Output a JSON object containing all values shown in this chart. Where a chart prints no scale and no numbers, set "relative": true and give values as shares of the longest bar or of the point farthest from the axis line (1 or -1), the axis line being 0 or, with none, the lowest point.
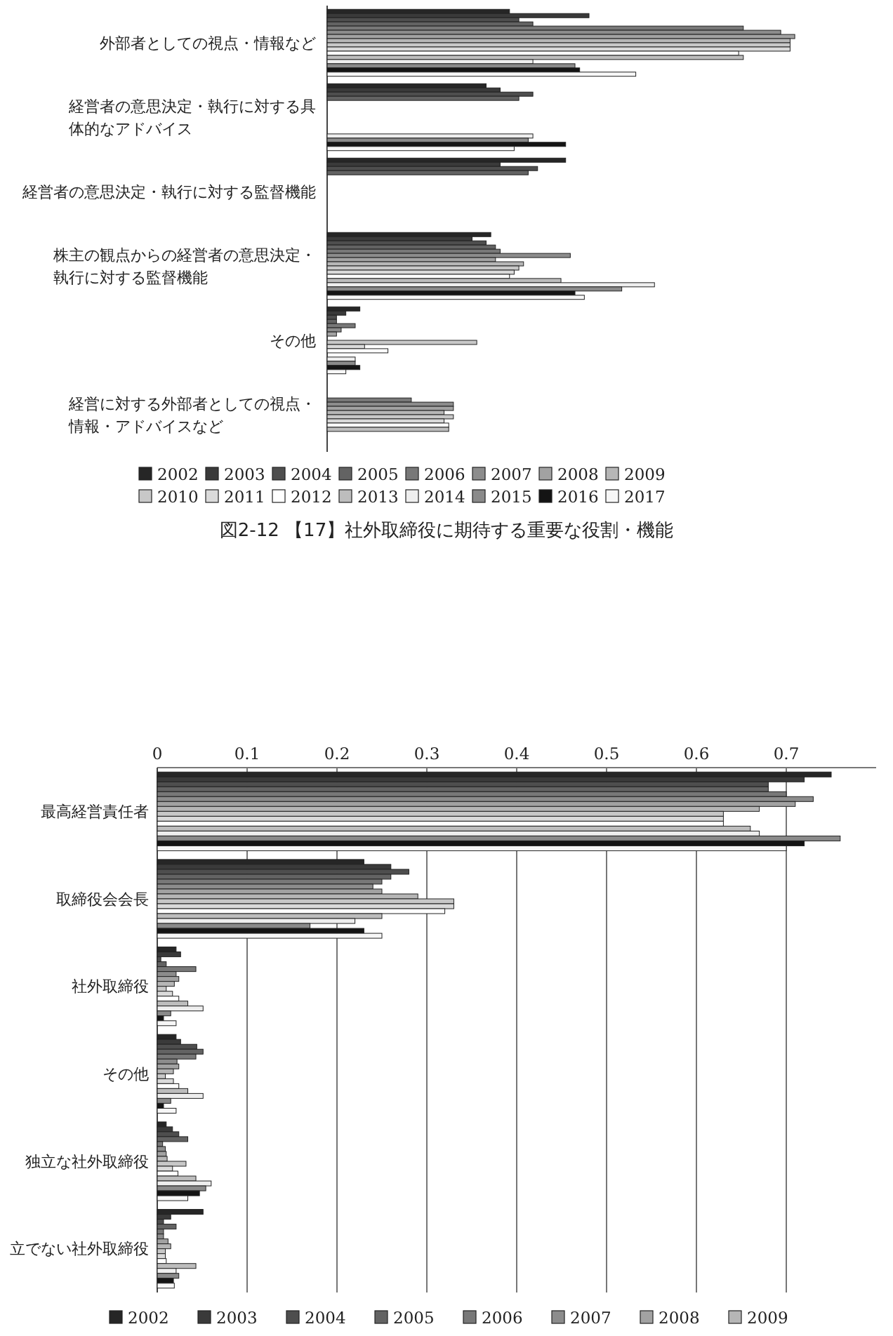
{
  "chart_data": [
    {
      "type": "bar",
      "orientation": "horizontal",
      "relative": true,
      "title": "図2-12 【17】社外取締役に期待する重要な役割・機能",
      "legend": "bottom",
      "categories": [
        "外部者としての視点・情報など",
        "経営者の意思決定・執行に対する具体的なアドバイス",
        "経営者の意思決定・執行に対する監督機能",
        "株主の観点からの経営者の意思決定・執行に対する監督機能",
        "その他",
        "経営に対する外部者としての視点・情報・アドバイスなど"
      ],
      "series": [
        {
          "name": "2002",
          "color": "#262626",
          "values": [
            0.39,
            0.34,
            0.51,
            0.35,
            0.07,
            null
          ]
        },
        {
          "name": "2003",
          "color": "#3a3a3a",
          "values": [
            0.56,
            0.37,
            0.37,
            0.31,
            0.04,
            null
          ]
        },
        {
          "name": "2004",
          "color": "#4e4e4e",
          "values": [
            0.41,
            0.44,
            0.45,
            0.34,
            0.02,
            null
          ]
        },
        {
          "name": "2005",
          "color": "#636363",
          "values": [
            0.44,
            0.41,
            0.43,
            0.36,
            0.02,
            null
          ]
        },
        {
          "name": "2006",
          "color": "#787878",
          "values": [
            0.89,
            null,
            null,
            0.37,
            0.06,
            0.18
          ]
        },
        {
          "name": "2007",
          "color": "#8c8c8c",
          "values": [
            0.97,
            null,
            null,
            0.52,
            0.03,
            0.27
          ]
        },
        {
          "name": "2008",
          "color": "#a2a2a2",
          "values": [
            1,
            null,
            null,
            0.36,
            0.02,
            0.27
          ]
        },
        {
          "name": "2009",
          "color": "#b6b6b6",
          "values": [
            0.99,
            null,
            null,
            0.42,
            null,
            0.25
          ]
        },
        {
          "name": "2010",
          "color": "#c8c8c8",
          "values": [
            0.99,
            null,
            null,
            0.41,
            0.32,
            0.27
          ]
        },
        {
          "name": "2011",
          "color": "#dadada",
          "values": [
            0.99,
            null,
            null,
            0.4,
            0.08,
            0.25
          ]
        },
        {
          "name": "2012",
          "color": "#ffffff",
          "values": [
            0.88,
            null,
            null,
            0.39,
            0.13,
            0.26
          ]
        },
        {
          "name": "2013",
          "color": "#bdbdbd",
          "values": [
            0.89,
            null,
            null,
            0.5,
            null,
            0.26
          ]
        },
        {
          "name": "2014",
          "color": "#eeeeee",
          "values": [
            0.44,
            0.44,
            null,
            0.7,
            0.06,
            null
          ]
        },
        {
          "name": "2015",
          "color": "#8a8a8a",
          "values": [
            0.53,
            0.43,
            null,
            0.63,
            0.06,
            null
          ]
        },
        {
          "name": "2016",
          "color": "#141414",
          "values": [
            0.54,
            0.51,
            null,
            0.53,
            0.07,
            null
          ]
        },
        {
          "name": "2017",
          "color": "#f7f7f7",
          "values": [
            0.66,
            0.4,
            null,
            0.55,
            0.04,
            null
          ]
        }
      ]
    },
    {
      "type": "bar",
      "orientation": "horizontal",
      "xlim": [
        0,
        0.8
      ],
      "xticks": [
        0,
        0.1,
        0.2,
        0.3,
        0.4,
        0.5,
        0.6,
        0.7
      ],
      "grid": "x",
      "legend": "bottom",
      "categories": [
        "最高経営責任者",
        "取締役会会長",
        "社外取締役",
        "その他",
        "独立な社外取締役",
        "立でない社外取締役"
      ],
      "series": [
        {
          "name": "2002",
          "color": "#262626",
          "values": [
            0.75,
            0.23,
            0.021,
            0.021,
            0.01,
            0.051
          ]
        },
        {
          "name": "2003",
          "color": "#3a3a3a",
          "values": [
            0.72,
            0.26,
            0.026,
            0.026,
            0.017,
            0.015
          ]
        },
        {
          "name": "2004",
          "color": "#4e4e4e",
          "values": [
            0.68,
            0.28,
            0.004,
            0.044,
            0.024,
            0.007
          ]
        },
        {
          "name": "2005",
          "color": "#636363",
          "values": [
            0.68,
            0.26,
            0.01,
            0.051,
            0.034,
            0.021
          ]
        },
        {
          "name": "2006",
          "color": "#787878",
          "values": [
            0.7,
            0.25,
            0.043,
            0.043,
            0.006,
            0.007
          ]
        },
        {
          "name": "2007",
          "color": "#8c8c8c",
          "values": [
            0.73,
            0.24,
            0.021,
            0.022,
            0.009,
            0.007
          ]
        },
        {
          "name": "2008",
          "color": "#a2a2a2",
          "values": [
            0.71,
            0.25,
            0.024,
            0.024,
            0.01,
            0.012
          ]
        },
        {
          "name": "2009",
          "color": "#b6b6b6",
          "values": [
            0.67,
            0.29,
            0.019,
            0.018,
            0.011,
            0.015
          ]
        },
        {
          "color": "#c8c8c8",
          "values": [
            0.63,
            0.33,
            0.01,
            0.009,
            0.032,
            0.009
          ]
        },
        {
          "color": "#dadada",
          "values": [
            0.63,
            0.33,
            0.017,
            0.018,
            0.017,
            0.009
          ]
        },
        {
          "color": "#ffffff",
          "values": [
            0.63,
            0.32,
            0.024,
            0.024,
            0.023,
            0.01
          ]
        },
        {
          "color": "#bdbdbd",
          "values": [
            0.66,
            0.25,
            0.034,
            0.034,
            0.043,
            0.043
          ]
        },
        {
          "color": "#eeeeee",
          "values": [
            0.67,
            0.22,
            0.051,
            0.051,
            0.06,
            0.021
          ]
        },
        {
          "color": "#8a8a8a",
          "values": [
            0.76,
            0.17,
            0.015,
            0.015,
            0.054,
            0.024
          ]
        },
        {
          "color": "#141414",
          "values": [
            0.72,
            0.23,
            0.007,
            0.007,
            0.047,
            0.018
          ]
        },
        {
          "color": "#f7f7f7",
          "values": [
            0.7,
            0.25,
            0.021,
            0.021,
            0.034,
            0.019
          ]
        }
      ]
    }
  ]
}
